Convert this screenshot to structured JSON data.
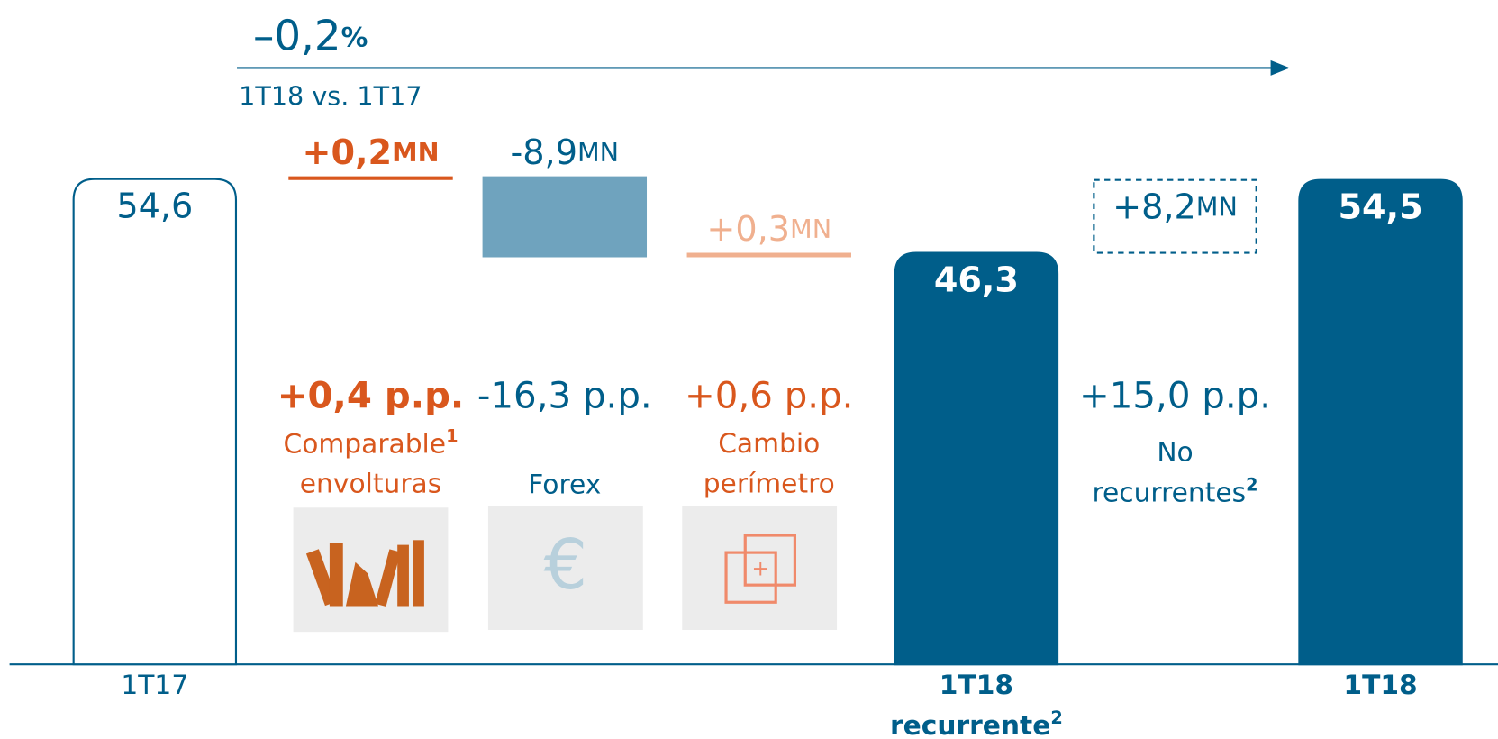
{
  "chart_data": {
    "type": "waterfall",
    "change": "–0,2",
    "change_unit": "%",
    "comparison": "1T18 vs. 1T17",
    "unit": "MN",
    "values": [
      54.6,
      0.2,
      -8.9,
      0.3,
      46.3,
      8.2,
      54.5
    ],
    "value_labels": [
      "54,6",
      "+0,2",
      "-8,9",
      "+0,3",
      "46,3",
      "+8,2",
      "54,5"
    ],
    "totals": [
      true,
      false,
      false,
      false,
      true,
      false,
      true
    ],
    "styles": [
      "outline",
      "fill",
      "fill",
      "fill",
      "fill",
      "dashed",
      "fill"
    ],
    "colors": [
      "#005e8a",
      "#d9571d",
      "#6fa3be",
      "#f0b08f",
      "#005e8a",
      "#005e8a",
      "#005e8a"
    ],
    "pp_labels": [
      null,
      "+0,4 p.p.",
      "-16,3 p.p.",
      "+0,6 p.p.",
      null,
      "+15,0 p.p.",
      null
    ],
    "names": [
      null,
      [
        {
          "text": "Comparable",
          "note": "1"
        },
        "envolturas"
      ],
      [
        "Forex"
      ],
      [
        "Cambio",
        "perímetro"
      ],
      null,
      [
        "No",
        {
          "text": "recurrentes",
          "note": "2"
        }
      ],
      null
    ],
    "x_labels": [
      [
        "1T17"
      ],
      null,
      null,
      null,
      [
        "1T18",
        {
          "text": "recurrente",
          "note": "2"
        }
      ],
      null,
      [
        "1T18"
      ]
    ],
    "ylim": [
      0,
      60
    ]
  }
}
